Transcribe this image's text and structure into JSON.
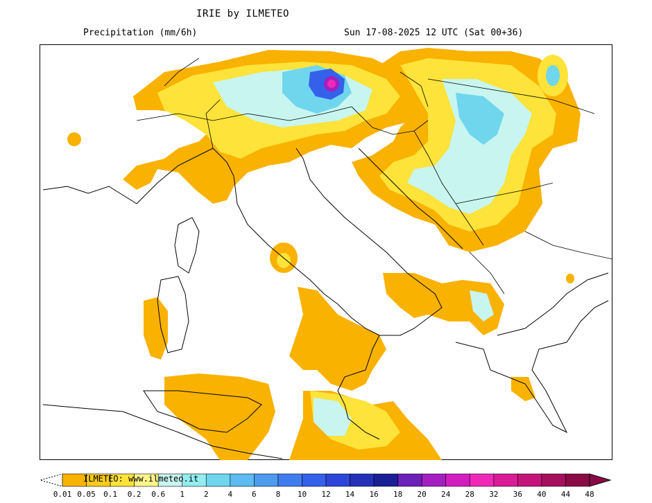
{
  "header": {
    "title": "IRIE by ILMETEO",
    "variable": "Precipitation (mm/6h)",
    "valid_time": "Sun 17-08-2025 12 UTC (Sat 00+36)"
  },
  "credit": "ILMETEO: www.ilmeteo.it",
  "scale": {
    "labels": [
      "0.01",
      "0.05",
      "0.1",
      "0.2",
      "0.6",
      "1",
      "2",
      "4",
      "6",
      "8",
      "10",
      "12",
      "14",
      "16",
      "18",
      "20",
      "24",
      "28",
      "32",
      "36",
      "40",
      "44",
      "48"
    ],
    "colors": [
      "#f9b200",
      "#fbcb1a",
      "#fde33a",
      "#fef58b",
      "#c8f5f0",
      "#93ecf0",
      "#6fd6ee",
      "#5cbbf0",
      "#4c9bee",
      "#3f7cee",
      "#3560ea",
      "#2d45d8",
      "#2430b8",
      "#1b1f96",
      "#6b20b8",
      "#a31fc0",
      "#d21ec0",
      "#f02ab8",
      "#da1a96",
      "#c4147a",
      "#a60f5e",
      "#8a0a46"
    ]
  },
  "map_colors": {
    "land_light": "#ffffff",
    "border": "#000000",
    "rain_light": "#f9b200",
    "rain_low": "#fde33a",
    "rain_mid": "#c8f5f0",
    "rain_high": "#6fd6ee",
    "rain_very_high": "#3560ea",
    "rain_peak": "#d21ec0"
  }
}
